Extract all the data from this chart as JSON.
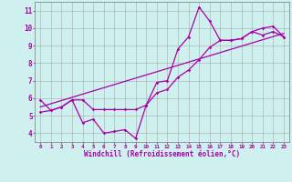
{
  "background_color": "#cef0ee",
  "line_color": "#aa00aa",
  "grid_color": "#aaaaaa",
  "title": "",
  "xlabel": "Windchill (Refroidissement éolien,°C)",
  "ylabel": "",
  "xlim": [
    -0.5,
    23.5
  ],
  "ylim": [
    3.5,
    11.5
  ],
  "xtick_labels": [
    "0",
    "1",
    "2",
    "3",
    "4",
    "5",
    "6",
    "7",
    "8",
    "9",
    "10",
    "11",
    "12",
    "13",
    "14",
    "15",
    "16",
    "17",
    "18",
    "19",
    "20",
    "21",
    "22",
    "23"
  ],
  "ytick_labels": [
    "4",
    "5",
    "6",
    "7",
    "8",
    "9",
    "10",
    "11"
  ],
  "ytick_vals": [
    4,
    5,
    6,
    7,
    8,
    9,
    10,
    11
  ],
  "curve1_x": [
    0,
    1,
    2,
    3,
    4,
    5,
    6,
    7,
    8,
    9,
    10,
    11,
    12,
    13,
    14,
    15,
    16,
    17,
    18,
    19,
    20,
    21,
    22,
    23
  ],
  "curve1_y": [
    5.9,
    5.3,
    5.5,
    5.9,
    4.6,
    4.8,
    4.0,
    4.1,
    4.2,
    3.7,
    5.6,
    6.9,
    7.0,
    8.8,
    9.5,
    11.2,
    10.4,
    9.3,
    9.3,
    9.4,
    9.8,
    10.0,
    10.1,
    9.5
  ],
  "curve2_x": [
    0,
    1,
    2,
    3,
    4,
    5,
    6,
    7,
    8,
    9,
    10,
    11,
    12,
    13,
    14,
    15,
    16,
    17,
    18,
    19,
    20,
    21,
    22,
    23
  ],
  "curve2_y": [
    5.2,
    5.3,
    5.5,
    5.9,
    5.9,
    5.35,
    5.35,
    5.35,
    5.35,
    5.35,
    5.6,
    6.3,
    6.5,
    7.2,
    7.6,
    8.2,
    8.9,
    9.3,
    9.3,
    9.4,
    9.8,
    9.6,
    9.8,
    9.5
  ],
  "trend_x": [
    0,
    23
  ],
  "trend_y": [
    5.5,
    9.7
  ]
}
